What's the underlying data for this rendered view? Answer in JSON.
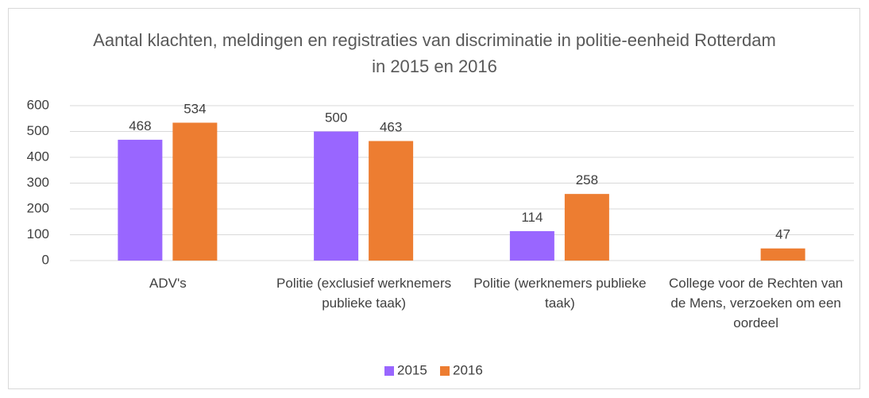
{
  "chart_data": {
    "type": "bar",
    "title": "Aantal klachten, meldingen en registraties van discriminatie in politie-eenheid Rotterdam in 2015 en 2016",
    "categories": [
      "ADV's",
      "Politie (exclusief werknemers publieke taak)",
      "Politie (werknemers publieke taak)",
      "College voor de Rechten van de Mens, verzoeken om een oordeel"
    ],
    "series": [
      {
        "name": "2015",
        "color": "#9966ff",
        "values": [
          468,
          500,
          114,
          null
        ]
      },
      {
        "name": "2016",
        "color": "#ed7d31",
        "values": [
          534,
          463,
          258,
          47
        ]
      }
    ],
    "ylim": [
      0,
      600
    ],
    "yticks": [
      0,
      100,
      200,
      300,
      400,
      500,
      600
    ],
    "grid": true,
    "legend": "bottom"
  }
}
